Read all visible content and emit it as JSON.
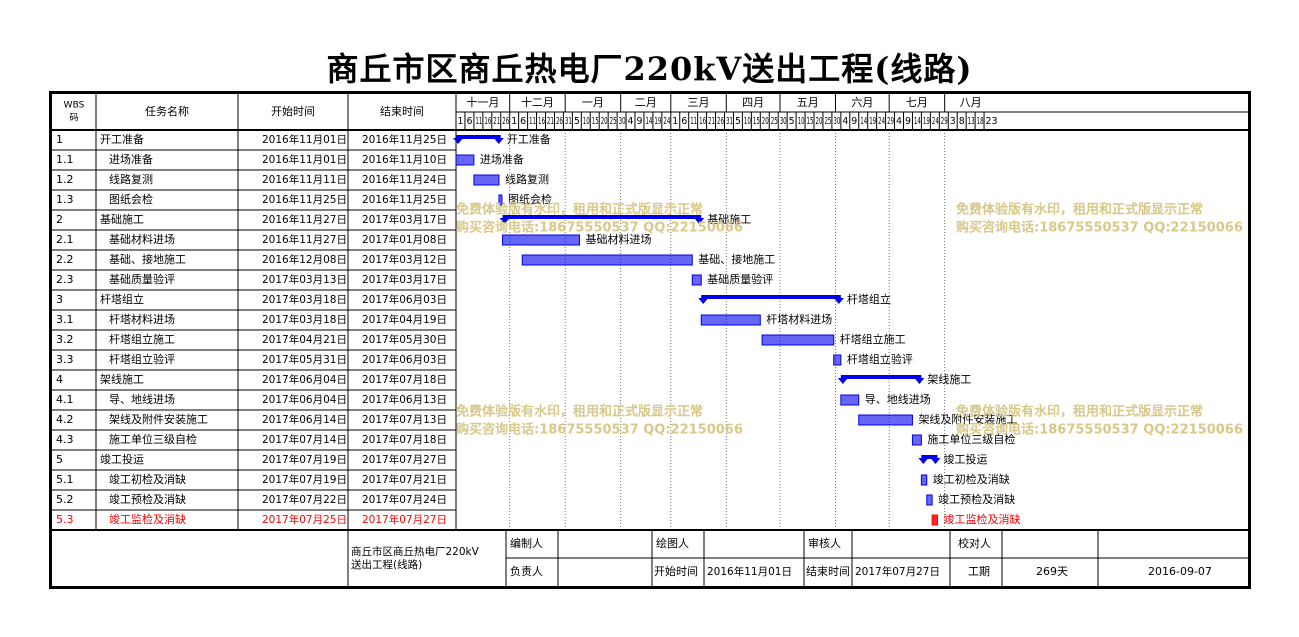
{
  "title": "商丘市区商丘热电厂220kV送出工程(线路)",
  "header": {
    "wbs": [
      "WBS",
      "码"
    ],
    "name": "任务名称",
    "start": "开始时间",
    "end": "结束时间"
  },
  "timeline": {
    "months": [
      "十一月",
      "十二月",
      "一月",
      "二月",
      "三月",
      "四月",
      "五月",
      "六月",
      "七月",
      "八月"
    ],
    "days": [
      "1",
      "6",
      "11",
      "16",
      "21",
      "26",
      "1",
      "6",
      "11",
      "16",
      "21",
      "26",
      "31",
      "5",
      "10",
      "15",
      "20",
      "25",
      "30",
      "4",
      "9",
      "14",
      "19",
      "24",
      "1",
      "6",
      "11",
      "16",
      "21",
      "26",
      "31",
      "5",
      "10",
      "15",
      "20",
      "25",
      "30",
      "5",
      "10",
      "15",
      "20",
      "25",
      "30",
      "4",
      "9",
      "14",
      "19",
      "24",
      "29",
      "4",
      "9",
      "14",
      "19",
      "24",
      "29",
      "3",
      "8",
      "13",
      "18",
      "23"
    ],
    "origin": "2016-11-01"
  },
  "tasks": [
    {
      "wbs": "1",
      "name": "开工准备",
      "start": "2016年11月01日",
      "end": "2016年11月25日",
      "s": "2016-11-01",
      "e": "2016-11-25",
      "level": 1,
      "type": "summary"
    },
    {
      "wbs": "1.1",
      "name": "进场准备",
      "start": "2016年11月01日",
      "end": "2016年11月10日",
      "s": "2016-11-01",
      "e": "2016-11-10",
      "level": 2,
      "type": "task"
    },
    {
      "wbs": "1.2",
      "name": "线路复测",
      "start": "2016年11月11日",
      "end": "2016年11月24日",
      "s": "2016-11-11",
      "e": "2016-11-24",
      "level": 2,
      "type": "task"
    },
    {
      "wbs": "1.3",
      "name": "图纸会检",
      "start": "2016年11月25日",
      "end": "2016年11月25日",
      "s": "2016-11-25",
      "e": "2016-11-25",
      "level": 2,
      "type": "task"
    },
    {
      "wbs": "2",
      "name": "基础施工",
      "start": "2016年11月27日",
      "end": "2017年03月17日",
      "s": "2016-11-27",
      "e": "2017-03-17",
      "level": 1,
      "type": "summary"
    },
    {
      "wbs": "2.1",
      "name": "基础材料进场",
      "start": "2016年11月27日",
      "end": "2017年01月08日",
      "s": "2016-11-27",
      "e": "2017-01-08",
      "level": 2,
      "type": "task"
    },
    {
      "wbs": "2.2",
      "name": "基础、接地施工",
      "start": "2016年12月08日",
      "end": "2017年03月12日",
      "s": "2016-12-08",
      "e": "2017-03-12",
      "level": 2,
      "type": "task"
    },
    {
      "wbs": "2.3",
      "name": "基础质量验评",
      "start": "2017年03月13日",
      "end": "2017年03月17日",
      "s": "2017-03-13",
      "e": "2017-03-17",
      "level": 2,
      "type": "task"
    },
    {
      "wbs": "3",
      "name": "杆塔组立",
      "start": "2017年03月18日",
      "end": "2017年06月03日",
      "s": "2017-03-18",
      "e": "2017-06-03",
      "level": 1,
      "type": "summary"
    },
    {
      "wbs": "3.1",
      "name": "杆塔材料进场",
      "start": "2017年03月18日",
      "end": "2017年04月19日",
      "s": "2017-03-18",
      "e": "2017-04-19",
      "level": 2,
      "type": "task"
    },
    {
      "wbs": "3.2",
      "name": "杆塔组立施工",
      "start": "2017年04月21日",
      "end": "2017年05月30日",
      "s": "2017-04-21",
      "e": "2017-05-30",
      "level": 2,
      "type": "task"
    },
    {
      "wbs": "3.3",
      "name": "杆塔组立验评",
      "start": "2017年05月31日",
      "end": "2017年06月03日",
      "s": "2017-05-31",
      "e": "2017-06-03",
      "level": 2,
      "type": "task"
    },
    {
      "wbs": "4",
      "name": "架线施工",
      "start": "2017年06月04日",
      "end": "2017年07月18日",
      "s": "2017-06-04",
      "e": "2017-07-18",
      "level": 1,
      "type": "summary"
    },
    {
      "wbs": "4.1",
      "name": "导、地线进场",
      "start": "2017年06月04日",
      "end": "2017年06月13日",
      "s": "2017-06-04",
      "e": "2017-06-13",
      "level": 2,
      "type": "task"
    },
    {
      "wbs": "4.2",
      "name": "架线及附件安装施工",
      "start": "2017年06月14日",
      "end": "2017年07月13日",
      "s": "2017-06-14",
      "e": "2017-07-13",
      "level": 2,
      "type": "task"
    },
    {
      "wbs": "4.3",
      "name": "施工单位三级自检",
      "start": "2017年07月14日",
      "end": "2017年07月18日",
      "s": "2017-07-14",
      "e": "2017-07-18",
      "level": 2,
      "type": "task"
    },
    {
      "wbs": "5",
      "name": "竣工投运",
      "start": "2017年07月19日",
      "end": "2017年07月27日",
      "s": "2017-07-19",
      "e": "2017-07-27",
      "level": 1,
      "type": "summary"
    },
    {
      "wbs": "5.1",
      "name": "竣工初检及消缺",
      "start": "2017年07月19日",
      "end": "2017年07月21日",
      "s": "2017-07-19",
      "e": "2017-07-21",
      "level": 2,
      "type": "task"
    },
    {
      "wbs": "5.2",
      "name": "竣工预检及消缺",
      "start": "2017年07月22日",
      "end": "2017年07月24日",
      "s": "2017-07-22",
      "e": "2017-07-24",
      "level": 2,
      "type": "task"
    },
    {
      "wbs": "5.3",
      "name": "竣工监检及消缺",
      "start": "2017年07月25日",
      "end": "2017年07月27日",
      "s": "2017-07-25",
      "e": "2017-07-27",
      "level": 2,
      "type": "task",
      "critical": true
    }
  ],
  "footer": {
    "project_lines": [
      "商丘市区商丘热电厂220kV",
      "送出工程(线路)"
    ],
    "labels": {
      "editor": "编制人",
      "drawer": "绘图人",
      "reviewer": "审核人",
      "proofreader": "校对人",
      "owner": "负责人",
      "start_time": "开始时间",
      "end_time": "结束时间",
      "duration": "工期"
    },
    "values": {
      "start": "2016年11月01日",
      "end": "2017年07月27日",
      "duration": "269天",
      "print_date": "2016-09-07"
    }
  },
  "watermark": {
    "line1": "免费体验版有水印，租用和正式版显示正常",
    "line2": "购买咨询电话:18675550537 QQ:22150066"
  },
  "colors": {
    "bar": "#0000ee",
    "critical": "#ff0000",
    "critical_text": "#ff0000",
    "watermark": "#d8c889"
  }
}
